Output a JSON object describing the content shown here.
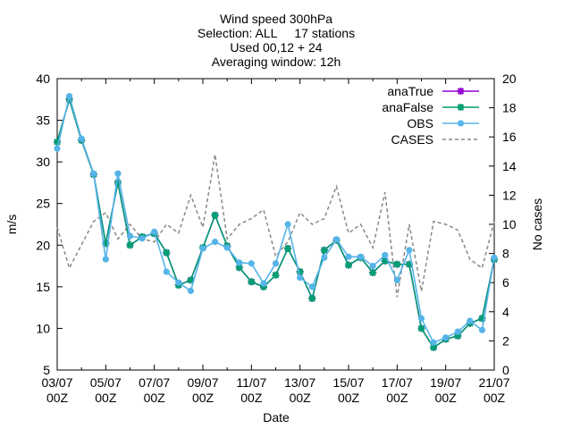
{
  "chart_data": {
    "type": "line",
    "title_lines": [
      "Wind speed 300hPa",
      "Selection: ALL     17 stations",
      "Used 00,12 + 24",
      "Averaging window: 12h"
    ],
    "xlabel": "Date",
    "ylabel": "m/s",
    "y2label": "No cases",
    "ylim": [
      5,
      40
    ],
    "y2lim": [
      0,
      20
    ],
    "yticks": [
      5,
      10,
      15,
      20,
      25,
      30,
      35,
      40
    ],
    "y2ticks": [
      0,
      2,
      4,
      6,
      8,
      10,
      12,
      14,
      16,
      18,
      20
    ],
    "xticks": [
      {
        "date": "03/07",
        "time": "00Z"
      },
      {
        "date": "05/07",
        "time": "00Z"
      },
      {
        "date": "07/07",
        "time": "00Z"
      },
      {
        "date": "09/07",
        "time": "00Z"
      },
      {
        "date": "11/07",
        "time": "00Z"
      },
      {
        "date": "13/07",
        "time": "00Z"
      },
      {
        "date": "15/07",
        "time": "00Z"
      },
      {
        "date": "17/07",
        "time": "00Z"
      },
      {
        "date": "19/07",
        "time": "00Z"
      },
      {
        "date": "21/07",
        "time": "00Z"
      }
    ],
    "x_step_days": 0.5,
    "x_range_days": 18,
    "legend_position": "top-right",
    "series": [
      {
        "name": "anaTrue",
        "axis": "y1",
        "color": "#9400d3",
        "style": "line-points",
        "marker": "cross",
        "values": [
          32.4,
          37.5,
          32.6,
          28.5,
          20.2,
          27.5,
          20.0,
          21.0,
          21.4,
          19.1,
          15.2,
          15.8,
          19.7,
          23.6,
          19.9,
          17.3,
          15.6,
          15.0,
          16.4,
          19.6,
          16.8,
          13.6,
          19.4,
          20.6,
          17.6,
          18.5,
          16.7,
          18.1,
          17.7,
          17.7,
          10.0,
          7.7,
          8.7,
          9.1,
          10.6,
          11.2,
          18.3
        ]
      },
      {
        "name": "anaFalse",
        "axis": "y1",
        "color": "#009e73",
        "style": "line-points",
        "marker": "cross",
        "values": [
          32.4,
          37.5,
          32.6,
          28.5,
          20.2,
          27.5,
          20.0,
          21.0,
          21.4,
          19.1,
          15.2,
          15.8,
          19.7,
          23.6,
          19.9,
          17.3,
          15.6,
          15.0,
          16.4,
          19.6,
          16.8,
          13.6,
          19.4,
          20.6,
          17.6,
          18.5,
          16.7,
          18.1,
          17.7,
          17.7,
          10.0,
          7.7,
          8.7,
          9.1,
          10.6,
          11.2,
          18.3
        ]
      },
      {
        "name": "OBS",
        "axis": "y1",
        "color": "#56b4e9",
        "style": "line-points",
        "marker": "dot",
        "values": [
          31.6,
          37.9,
          32.8,
          28.6,
          18.3,
          28.6,
          21.1,
          20.8,
          21.6,
          16.8,
          15.5,
          14.5,
          19.6,
          20.4,
          19.7,
          17.9,
          17.8,
          15.4,
          17.8,
          22.5,
          16.1,
          15.0,
          18.5,
          20.7,
          18.6,
          18.6,
          17.5,
          18.8,
          15.8,
          19.4,
          11.2,
          8.3,
          8.9,
          9.6,
          10.9,
          9.8,
          18.5
        ]
      },
      {
        "name": "CASES",
        "axis": "y2",
        "color": "#888888",
        "style": "dashed",
        "values": [
          9.8,
          7.0,
          8.6,
          10.2,
          10.8,
          9.0,
          10.0,
          9.0,
          8.8,
          10.0,
          9.4,
          12.0,
          9.8,
          14.8,
          9.0,
          10.0,
          10.4,
          11.0,
          7.8,
          8.8,
          10.8,
          10.0,
          10.4,
          12.6,
          9.4,
          10.0,
          8.4,
          12.2,
          5.0,
          10.0,
          5.4,
          10.2,
          10.0,
          9.6,
          7.6,
          7.0,
          10.2
        ]
      }
    ]
  }
}
